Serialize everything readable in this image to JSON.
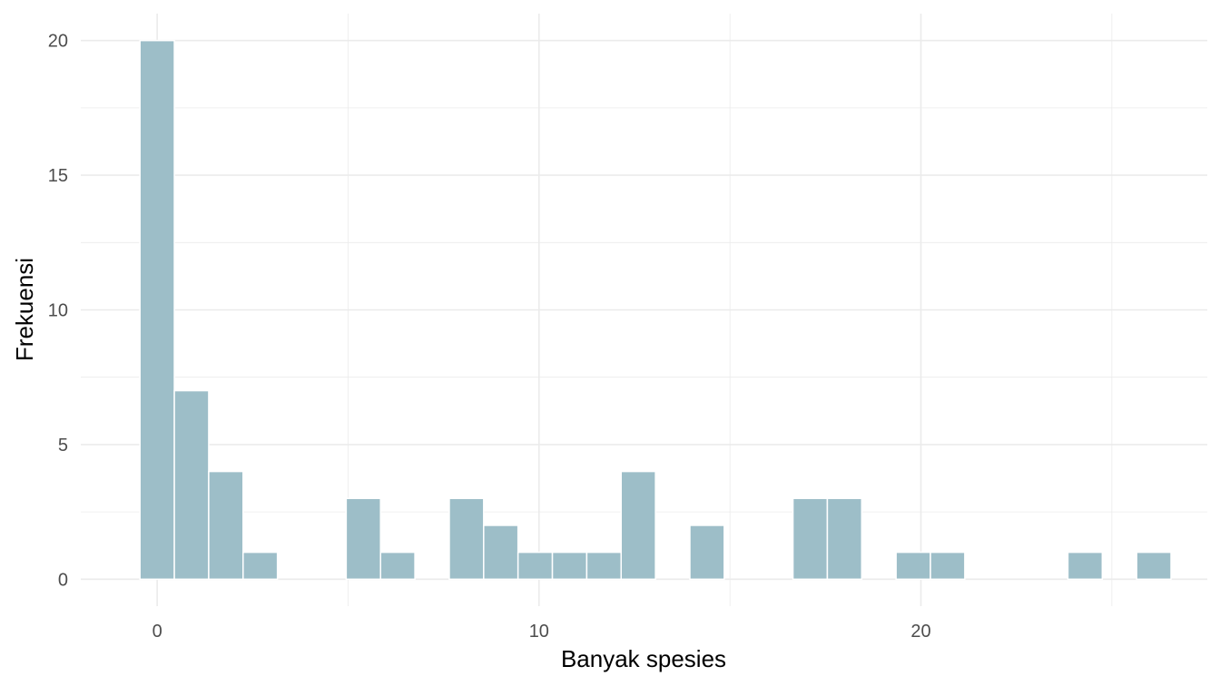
{
  "chart_data": {
    "type": "bar",
    "subtype": "histogram",
    "xlabel": "Banyak spesies",
    "ylabel": "Frekuensi",
    "x_ticks": [
      0,
      10,
      20
    ],
    "y_ticks": [
      0,
      5,
      10,
      15,
      20
    ],
    "xlim": [
      -2.0,
      27.5
    ],
    "ylim": [
      -1.0,
      21.0
    ],
    "bin_width": 0.9,
    "bins": [
      {
        "x": 0.0,
        "count": 20
      },
      {
        "x": 0.9,
        "count": 7
      },
      {
        "x": 1.8,
        "count": 4
      },
      {
        "x": 2.7,
        "count": 1
      },
      {
        "x": 3.6,
        "count": 0
      },
      {
        "x": 4.5,
        "count": 0
      },
      {
        "x": 5.4,
        "count": 3
      },
      {
        "x": 6.3,
        "count": 1
      },
      {
        "x": 7.2,
        "count": 0
      },
      {
        "x": 8.1,
        "count": 3
      },
      {
        "x": 9.0,
        "count": 2
      },
      {
        "x": 9.9,
        "count": 1
      },
      {
        "x": 10.8,
        "count": 1
      },
      {
        "x": 11.7,
        "count": 1
      },
      {
        "x": 12.6,
        "count": 4
      },
      {
        "x": 13.5,
        "count": 0
      },
      {
        "x": 14.4,
        "count": 2
      },
      {
        "x": 15.3,
        "count": 0
      },
      {
        "x": 16.2,
        "count": 0
      },
      {
        "x": 17.1,
        "count": 3
      },
      {
        "x": 18.0,
        "count": 3
      },
      {
        "x": 18.9,
        "count": 0
      },
      {
        "x": 19.8,
        "count": 1
      },
      {
        "x": 20.7,
        "count": 1
      },
      {
        "x": 21.6,
        "count": 0
      },
      {
        "x": 22.5,
        "count": 0
      },
      {
        "x": 23.4,
        "count": 0
      },
      {
        "x": 24.3,
        "count": 1
      },
      {
        "x": 25.2,
        "count": 0
      },
      {
        "x": 26.1,
        "count": 1
      }
    ],
    "grid": true,
    "legend": "none",
    "bar_color": "#9dbec8",
    "bar_outline_color": "#ffffff",
    "grid_color": "#ebebeb",
    "background": "#ffffff"
  }
}
